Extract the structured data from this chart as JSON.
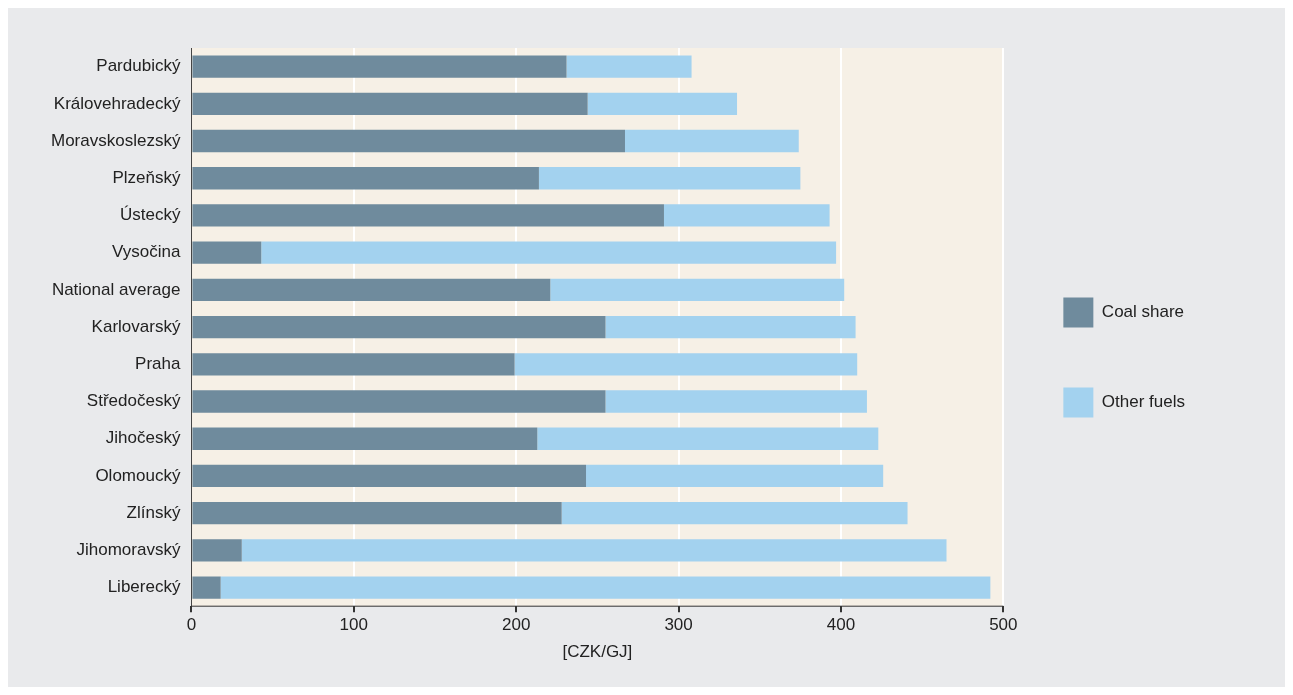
{
  "chart_data": {
    "type": "bar",
    "orientation": "horizontal",
    "stacked": true,
    "xlabel": "[CZK/GJ]",
    "categories": [
      "Pardubický",
      "Královehradecký",
      "Moravskoslezský",
      "Plzeňský",
      "Ústecký",
      "Vysočina",
      "National average",
      "Karlovarský",
      "Praha",
      "Středočeský",
      "Jihočeský",
      "Olomoucký",
      "Zlínský",
      "Jihomoravský",
      "Liberecký"
    ],
    "series": [
      {
        "name": "Coal share",
        "color": "#6f8b9d",
        "values": [
          231,
          244,
          267,
          214,
          291,
          43,
          221,
          255,
          199,
          255,
          213,
          243,
          228,
          31,
          18
        ]
      },
      {
        "name": "Other fuels",
        "color": "#a3d2ef",
        "values": [
          77,
          92,
          107,
          161,
          102,
          354,
          181,
          154,
          211,
          161,
          210,
          183,
          213,
          434,
          474
        ]
      }
    ],
    "xlim": [
      0,
      500
    ],
    "xticks": [
      0,
      100,
      200,
      300,
      400,
      500
    ],
    "grid": "x",
    "legend": "right"
  }
}
